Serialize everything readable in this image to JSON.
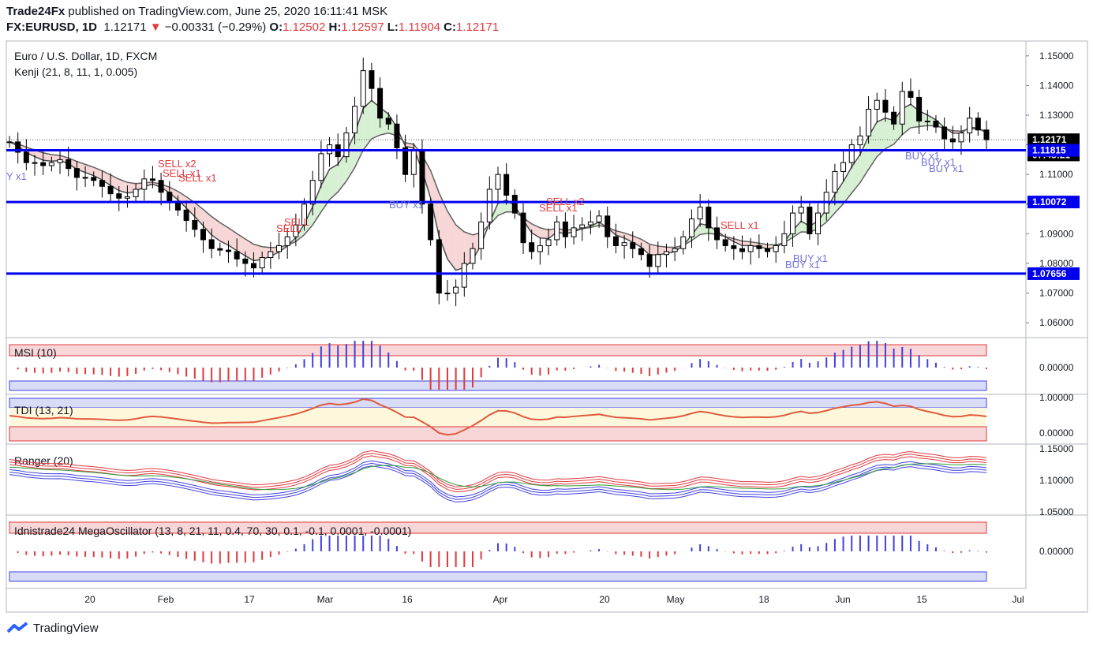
{
  "header": {
    "publisher": "Trade24Fx",
    "published_text": "published on TradingView.com, June 25, 2020 16:11:41 MSK",
    "symbol": "FX:EURUSD, 1D",
    "last": "1.12171",
    "change": "−0.00331 (−0.29%)",
    "o_label": "O:",
    "o_value": "1.12502",
    "h_label": "H:",
    "h_value": "1.12597",
    "l_label": "L:",
    "l_value": "1.11904",
    "c_label": "C:",
    "c_value": "1.12171"
  },
  "footer": {
    "brand": "TradingView"
  },
  "chart_data": [
    {
      "type": "candlestick",
      "title": "Euro / U.S. Dollar, 1D, FXCM",
      "subtitle": "Kenji (21, 8, 11, 1, 0.005)",
      "ylim": [
        1.055,
        1.155
      ],
      "y_ticks": [
        "1.15000",
        "1.14000",
        "1.13000",
        "1.12000",
        "1.11000",
        "1.10000",
        "1.09000",
        "1.08000",
        "1.07000",
        "1.06000"
      ],
      "x_ticks": [
        "20",
        "Feb",
        "17",
        "Mar",
        "16",
        "Apr",
        "20",
        "May",
        "18",
        "Jun",
        "15",
        "Jul"
      ],
      "price_labels": [
        {
          "text": "1.12171",
          "value": 1.12171,
          "color": "#000000"
        },
        {
          "text": "07:48:21",
          "value": 1.1166,
          "color": "#000000"
        },
        {
          "text": "1.11815",
          "value": 1.11815,
          "color": "#0000ee"
        },
        {
          "text": "1.10072",
          "value": 1.10072,
          "color": "#0000ee"
        },
        {
          "text": "1.07656",
          "value": 1.07656,
          "color": "#0000ee"
        }
      ],
      "horizontal_levels": [
        1.11815,
        1.10072,
        1.07656
      ],
      "closes": [
        1.121,
        1.1175,
        1.114,
        1.114,
        1.113,
        1.114,
        1.115,
        1.112,
        1.109,
        1.109,
        1.108,
        1.106,
        1.1035,
        1.102,
        1.1025,
        1.105,
        1.1085,
        1.108,
        1.104,
        1.101,
        1.098,
        1.0945,
        1.0915,
        1.088,
        1.085,
        1.0845,
        1.084,
        1.0815,
        1.08,
        1.0785,
        1.082,
        1.084,
        1.086,
        1.089,
        1.093,
        1.1,
        1.108,
        1.117,
        1.12,
        1.116,
        1.124,
        1.133,
        1.145,
        1.139,
        1.129,
        1.127,
        1.119,
        1.11,
        1.118,
        1.1,
        1.088,
        1.07,
        1.07,
        1.072,
        1.08,
        1.085,
        1.094,
        1.105,
        1.11,
        1.103,
        1.097,
        1.087,
        1.084,
        1.086,
        1.088,
        1.094,
        1.089,
        1.092,
        1.093,
        1.094,
        1.096,
        1.089,
        1.086,
        1.087,
        1.085,
        1.083,
        1.079,
        1.083,
        1.084,
        1.085,
        1.089,
        1.095,
        1.099,
        1.092,
        1.088,
        1.086,
        1.085,
        1.084,
        1.086,
        1.085,
        1.084,
        1.086,
        1.09,
        1.097,
        1.099,
        1.09,
        1.097,
        1.104,
        1.111,
        1.114,
        1.12,
        1.123,
        1.132,
        1.135,
        1.131,
        1.127,
        1.138,
        1.136,
        1.128,
        1.128,
        1.126,
        1.122,
        1.121,
        1.124,
        1.129,
        1.125,
        1.1217
      ],
      "legend_signals": [
        "SELL x2",
        "SELL x1",
        "SELL",
        "BUY x1",
        "BUY x1",
        "SELL x2",
        "SELL x1",
        "BUY x1",
        "BUY x1",
        "BUY x1",
        "Y x1"
      ]
    },
    {
      "type": "bar",
      "title": "MSI (10)",
      "y_ticks": [
        "0.00000"
      ]
    },
    {
      "type": "line",
      "title": "TDI (13, 21)",
      "y_ticks": [
        "1.00000",
        "0.00000"
      ]
    },
    {
      "type": "line",
      "title": "Ranger (20)",
      "y_ticks": [
        "1.15000",
        "1.10000",
        "1.05000"
      ]
    },
    {
      "type": "bar",
      "title": "Idnistrade24 MegaOscillator (13, 8, 21, 11, 0.4, 70, 30, 0.1, -0.1, 0.0001, -0.0001)",
      "y_ticks": [
        "0.00000"
      ]
    }
  ]
}
